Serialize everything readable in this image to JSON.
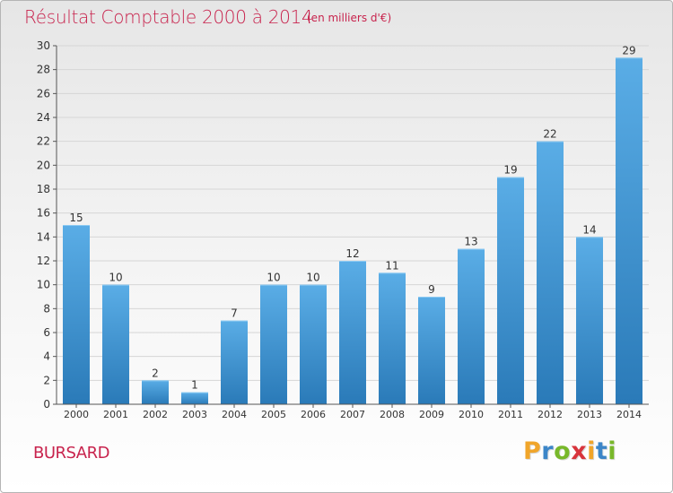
{
  "header": {
    "title": "Résultat Comptable 2000 à 2014",
    "subtitle": "(en milliers d'€)"
  },
  "footer": {
    "commune": "BURSARD",
    "logo_text": "Proxiti",
    "logo_letters": [
      "P",
      "r",
      "o",
      "x",
      "i",
      "t",
      "i"
    ],
    "logo_colors": [
      "#f0a52a",
      "#3c86c8",
      "#78b82a",
      "#d8343c",
      "#f0a52a",
      "#3c86c8",
      "#78b82a"
    ]
  },
  "colors": {
    "title": "#c8234d",
    "bar_top": "#5aade6",
    "bar_bottom": "#2a7ab8",
    "grid": "#d6d6d6",
    "axis": "#555555"
  },
  "chart_data": {
    "type": "bar",
    "categories": [
      "2000",
      "2001",
      "2002",
      "2003",
      "2004",
      "2005",
      "2006",
      "2007",
      "2008",
      "2009",
      "2010",
      "2011",
      "2012",
      "2013",
      "2014"
    ],
    "values": [
      15,
      10,
      2,
      1,
      7,
      10,
      10,
      12,
      11,
      9,
      13,
      19,
      22,
      14,
      29
    ],
    "ylim": [
      0,
      30
    ],
    "yticks": [
      0,
      2,
      4,
      6,
      8,
      10,
      12,
      14,
      16,
      18,
      20,
      22,
      24,
      26,
      28,
      30
    ],
    "grid": true,
    "data_labels": true
  }
}
